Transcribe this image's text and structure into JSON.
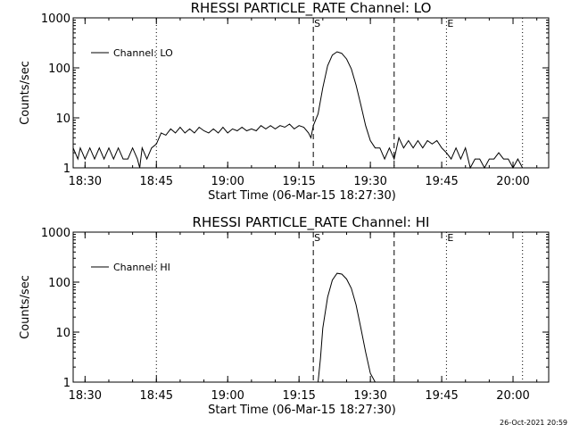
{
  "footer_stamp": "26-Oct-2021 20:59",
  "chart_data": [
    {
      "type": "line",
      "title": "RHESSI PARTICLE_RATE Channel: LO",
      "xlabel": "Start Time (06-Mar-15 18:27:30)",
      "ylabel": "Counts/sec",
      "yscale": "log",
      "ylim": [
        1,
        1000
      ],
      "yticks": [
        "1",
        "10",
        "100",
        "1000"
      ],
      "xlim_minutes_after_start": [
        0,
        100
      ],
      "xticks": [
        "18:30",
        "18:45",
        "19:00",
        "19:15",
        "19:30",
        "19:45",
        "20:00"
      ],
      "legend": {
        "label": "Channel: LO",
        "placement": "top-left"
      },
      "markers": [
        {
          "time": "18:45",
          "style": "dotted",
          "label": ""
        },
        {
          "time": "19:18",
          "style": "dashed",
          "label": "S"
        },
        {
          "time": "19:35",
          "style": "dashed",
          "label": ""
        },
        {
          "time": "19:46",
          "style": "dotted",
          "label": "E"
        },
        {
          "time": "20:02",
          "style": "dotted",
          "label": ""
        }
      ],
      "series": [
        {
          "name": "Channel: LO",
          "points": [
            [
              "18:27:30",
              2.5
            ],
            [
              "18:28:30",
              1.5
            ],
            [
              "18:29",
              2.5
            ],
            [
              "18:30",
              1.5
            ],
            [
              "18:31",
              2.5
            ],
            [
              "18:32",
              1.5
            ],
            [
              "18:33",
              2.5
            ],
            [
              "18:34",
              1.5
            ],
            [
              "18:35",
              2.5
            ],
            [
              "18:36",
              1.5
            ],
            [
              "18:37",
              2.5
            ],
            [
              "18:38",
              1.5
            ],
            [
              "18:39",
              1.5
            ],
            [
              "18:40",
              2.5
            ],
            [
              "18:41",
              1.5
            ],
            [
              "18:41:30",
              1.0
            ],
            [
              "18:42",
              2.5
            ],
            [
              "18:43",
              1.5
            ],
            [
              "18:44",
              2.5
            ],
            [
              "18:45",
              3.0
            ],
            [
              "18:46",
              5.0
            ],
            [
              "18:47",
              4.5
            ],
            [
              "18:48",
              6.0
            ],
            [
              "18:49",
              5.0
            ],
            [
              "18:50",
              6.5
            ],
            [
              "18:51",
              5.0
            ],
            [
              "18:52",
              6.0
            ],
            [
              "18:53",
              5.0
            ],
            [
              "18:54",
              6.5
            ],
            [
              "18:55",
              5.5
            ],
            [
              "18:56",
              5.0
            ],
            [
              "18:57",
              6.0
            ],
            [
              "18:58",
              5.0
            ],
            [
              "18:59",
              6.5
            ],
            [
              "19:00",
              5.0
            ],
            [
              "19:01",
              6.0
            ],
            [
              "19:02",
              5.5
            ],
            [
              "19:03",
              6.5
            ],
            [
              "19:04",
              5.5
            ],
            [
              "19:05",
              6.0
            ],
            [
              "19:06",
              5.5
            ],
            [
              "19:07",
              7.0
            ],
            [
              "19:08",
              6.0
            ],
            [
              "19:09",
              7.0
            ],
            [
              "19:10",
              6.0
            ],
            [
              "19:11",
              7.0
            ],
            [
              "19:12",
              6.5
            ],
            [
              "19:13",
              7.5
            ],
            [
              "19:14",
              6.0
            ],
            [
              "19:15",
              7.0
            ],
            [
              "19:16",
              6.5
            ],
            [
              "19:17",
              5.0
            ],
            [
              "19:17:30",
              4.0
            ],
            [
              "19:18",
              7.0
            ],
            [
              "19:19",
              12
            ],
            [
              "19:20",
              40
            ],
            [
              "19:21",
              110
            ],
            [
              "19:22",
              180
            ],
            [
              "19:23",
              210
            ],
            [
              "19:24",
              195
            ],
            [
              "19:25",
              150
            ],
            [
              "19:26",
              95
            ],
            [
              "19:27",
              45
            ],
            [
              "19:28",
              18
            ],
            [
              "19:29",
              7
            ],
            [
              "19:30",
              3.5
            ],
            [
              "19:31",
              2.5
            ],
            [
              "19:32",
              2.5
            ],
            [
              "19:33",
              1.5
            ],
            [
              "19:34",
              2.5
            ],
            [
              "19:35",
              1.5
            ],
            [
              "19:36",
              4.0
            ],
            [
              "19:37",
              2.5
            ],
            [
              "19:38",
              3.5
            ],
            [
              "19:39",
              2.5
            ],
            [
              "19:40",
              3.5
            ],
            [
              "19:41",
              2.5
            ],
            [
              "19:42",
              3.5
            ],
            [
              "19:43",
              3.0
            ],
            [
              "19:44",
              3.5
            ],
            [
              "19:45",
              2.5
            ],
            [
              "19:46",
              2.0
            ],
            [
              "19:47",
              1.5
            ],
            [
              "19:48",
              2.5
            ],
            [
              "19:49",
              1.5
            ],
            [
              "19:50",
              2.5
            ],
            [
              "19:51",
              1.0
            ],
            [
              "19:52",
              1.5
            ],
            [
              "19:53",
              1.5
            ],
            [
              "19:54",
              1.0
            ],
            [
              "19:55",
              1.5
            ],
            [
              "19:56",
              1.5
            ],
            [
              "19:57",
              2.0
            ],
            [
              "19:58",
              1.5
            ],
            [
              "19:59",
              1.5
            ],
            [
              "20:00",
              1.0
            ],
            [
              "20:01",
              1.5
            ],
            [
              "20:02",
              1.0
            ]
          ]
        }
      ]
    },
    {
      "type": "line",
      "title": "RHESSI PARTICLE_RATE Channel: HI",
      "xlabel": "Start Time (06-Mar-15 18:27:30)",
      "ylabel": "Counts/sec",
      "yscale": "log",
      "ylim": [
        1,
        1000
      ],
      "yticks": [
        "1",
        "10",
        "100",
        "1000"
      ],
      "xlim_minutes_after_start": [
        0,
        100
      ],
      "xticks": [
        "18:30",
        "18:45",
        "19:00",
        "19:15",
        "19:30",
        "19:45",
        "20:00"
      ],
      "legend": {
        "label": "Channel: HI",
        "placement": "top-left"
      },
      "markers": [
        {
          "time": "18:45",
          "style": "dotted",
          "label": ""
        },
        {
          "time": "19:18",
          "style": "dashed",
          "label": "S"
        },
        {
          "time": "19:35",
          "style": "dashed",
          "label": ""
        },
        {
          "time": "19:46",
          "style": "dotted",
          "label": "E"
        },
        {
          "time": "20:02",
          "style": "dotted",
          "label": ""
        }
      ],
      "series": [
        {
          "name": "Channel: HI",
          "points": [
            [
              "19:19",
              1.0
            ],
            [
              "19:19:30",
              3
            ],
            [
              "19:20",
              12
            ],
            [
              "19:21",
              50
            ],
            [
              "19:22",
              110
            ],
            [
              "19:23",
              150
            ],
            [
              "19:24",
              145
            ],
            [
              "19:25",
              115
            ],
            [
              "19:26",
              75
            ],
            [
              "19:27",
              35
            ],
            [
              "19:28",
              12
            ],
            [
              "19:29",
              4
            ],
            [
              "19:30",
              1.5
            ],
            [
              "19:31",
              1.0
            ]
          ]
        }
      ]
    }
  ]
}
